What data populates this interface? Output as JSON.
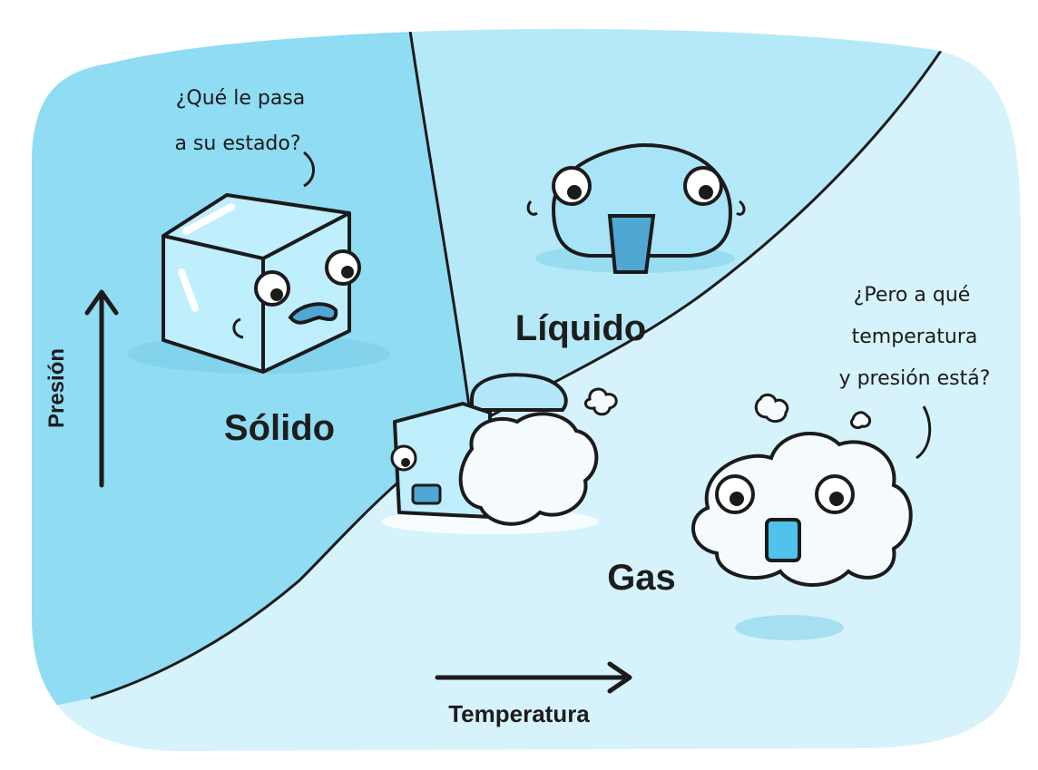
{
  "diagram": {
    "regions": {
      "solid": "Sólido",
      "liquid": "Líquido",
      "gas": "Gas"
    },
    "axes": {
      "y_label": "Presión",
      "x_label": "Temperatura"
    },
    "speech": {
      "ice_line1": "¿Qué le pasa",
      "ice_line2": "a su estado?",
      "gas_line1": "¿Pero a qué",
      "gas_line2": "temperatura",
      "gas_line3": "y presión está?"
    },
    "colors": {
      "solid_region": "#8fdcf3",
      "liquid_region": "#b6e9f7",
      "gas_region": "#d6f3fb",
      "ink": "#1b1b1b"
    }
  }
}
